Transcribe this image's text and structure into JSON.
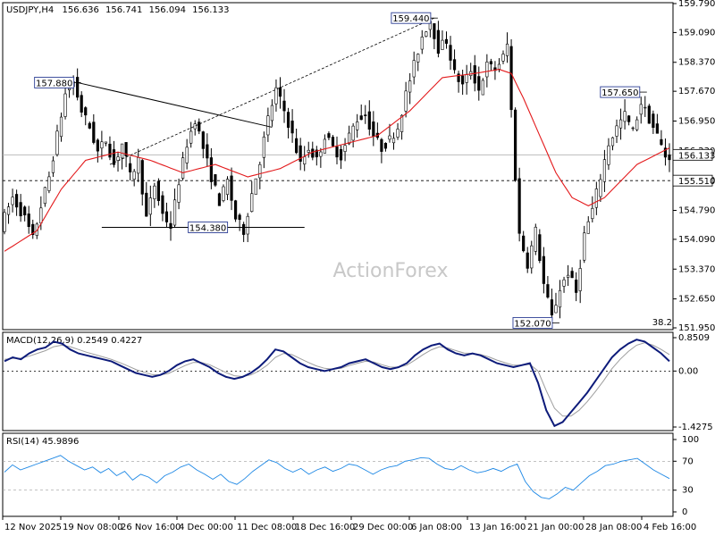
{
  "chart_data": [
    {
      "type": "candlestick",
      "title": "USDJPY,H4",
      "ohlc": {
        "open": "156.636",
        "high": "156.741",
        "low": "156.094",
        "close": "156.133"
      },
      "y_ticks": [
        "159.790",
        "159.090",
        "158.370",
        "157.670",
        "156.950",
        "156.230",
        "155.510",
        "154.790",
        "154.090",
        "153.370",
        "152.650",
        "151.950"
      ],
      "ylim": [
        151.95,
        159.79
      ],
      "current_price": {
        "label": "156.133",
        "value": 156.133
      },
      "level_line": {
        "label": "155.510",
        "value": 155.51
      },
      "annotations": [
        {
          "text": "159.440",
          "value": 159.44
        },
        {
          "text": "157.880",
          "value": 157.88
        },
        {
          "text": "157.650",
          "value": 157.65
        },
        {
          "text": "154.380",
          "value": 154.38
        },
        {
          "text": "152.070",
          "value": 152.07
        }
      ],
      "corner_label": "38.2",
      "watermark": "ActionForex",
      "x_ticks": [
        "12 Nov 2025",
        "19 Nov 08:00",
        "26 Nov 16:00",
        "4 Dec 00:00",
        "11 Dec 08:00",
        "18 Dec 16:00",
        "29 Dec 00:00",
        "6 Jan 08:00",
        "13 Jan 16:00",
        "21 Jan 00:00",
        "28 Jan 08:00",
        "4 Feb 16:00"
      ],
      "price_path": [
        [
          0,
          154.4
        ],
        [
          3,
          155.1
        ],
        [
          6,
          154.6
        ],
        [
          8,
          154.1
        ],
        [
          10,
          154.9
        ],
        [
          12,
          155.6
        ],
        [
          14,
          156.6
        ],
        [
          16,
          157.6
        ],
        [
          18,
          157.9
        ],
        [
          20,
          157.2
        ],
        [
          22,
          156.8
        ],
        [
          24,
          156.2
        ],
        [
          26,
          156.5
        ],
        [
          28,
          155.9
        ],
        [
          30,
          156.4
        ],
        [
          32,
          155.6
        ],
        [
          34,
          156.0
        ],
        [
          36,
          154.6
        ],
        [
          38,
          155.4
        ],
        [
          40,
          154.7
        ],
        [
          42,
          154.4
        ],
        [
          44,
          155.5
        ],
        [
          46,
          156.4
        ],
        [
          48,
          157.0
        ],
        [
          50,
          156.3
        ],
        [
          52,
          155.6
        ],
        [
          54,
          155.0
        ],
        [
          56,
          155.5
        ],
        [
          58,
          154.6
        ],
        [
          60,
          154.3
        ],
        [
          62,
          155.2
        ],
        [
          64,
          156.0
        ],
        [
          66,
          157.0
        ],
        [
          68,
          157.7
        ],
        [
          70,
          157.2
        ],
        [
          72,
          156.6
        ],
        [
          74,
          155.9
        ],
        [
          76,
          156.3
        ],
        [
          78,
          156.0
        ],
        [
          80,
          156.6
        ],
        [
          82,
          156.3
        ],
        [
          84,
          156.1
        ],
        [
          86,
          156.6
        ],
        [
          88,
          157.0
        ],
        [
          90,
          157.1
        ],
        [
          92,
          156.6
        ],
        [
          94,
          156.3
        ],
        [
          96,
          156.5
        ],
        [
          98,
          156.8
        ],
        [
          100,
          157.6
        ],
        [
          102,
          158.3
        ],
        [
          104,
          159.0
        ],
        [
          106,
          159.4
        ],
        [
          108,
          158.7
        ],
        [
          110,
          158.9
        ],
        [
          112,
          158.1
        ],
        [
          114,
          157.8
        ],
        [
          116,
          158.2
        ],
        [
          118,
          157.7
        ],
        [
          120,
          158.3
        ],
        [
          122,
          158.2
        ],
        [
          124,
          158.5
        ],
        [
          125,
          158.8
        ],
        [
          126,
          157.2
        ],
        [
          127,
          155.6
        ],
        [
          128,
          154.2
        ],
        [
          130,
          153.5
        ],
        [
          132,
          154.3
        ],
        [
          134,
          153.0
        ],
        [
          136,
          152.2
        ],
        [
          138,
          152.9
        ],
        [
          140,
          153.3
        ],
        [
          142,
          152.8
        ],
        [
          144,
          154.2
        ],
        [
          146,
          154.8
        ],
        [
          148,
          155.6
        ],
        [
          150,
          156.4
        ],
        [
          152,
          156.8
        ],
        [
          154,
          157.1
        ],
        [
          156,
          156.7
        ],
        [
          158,
          157.4
        ],
        [
          160,
          157.0
        ],
        [
          162,
          156.6
        ],
        [
          164,
          156.1
        ]
      ],
      "ma_path": [
        [
          0,
          153.8
        ],
        [
          8,
          154.3
        ],
        [
          14,
          155.3
        ],
        [
          20,
          156.0
        ],
        [
          28,
          156.2
        ],
        [
          36,
          156.0
        ],
        [
          44,
          155.7
        ],
        [
          52,
          155.9
        ],
        [
          60,
          155.6
        ],
        [
          68,
          155.8
        ],
        [
          76,
          156.2
        ],
        [
          84,
          156.4
        ],
        [
          92,
          156.6
        ],
        [
          100,
          157.2
        ],
        [
          108,
          158.0
        ],
        [
          116,
          158.1
        ],
        [
          122,
          158.2
        ],
        [
          125,
          158.1
        ],
        [
          128,
          157.5
        ],
        [
          132,
          156.6
        ],
        [
          136,
          155.7
        ],
        [
          140,
          155.1
        ],
        [
          144,
          154.9
        ],
        [
          148,
          155.1
        ],
        [
          152,
          155.5
        ],
        [
          156,
          155.9
        ],
        [
          160,
          156.1
        ],
        [
          164,
          156.3
        ]
      ],
      "x_count": 165,
      "annotation_bars": {
        "peak": 106,
        "high_nov": 18,
        "right": 158,
        "low_jan": 136,
        "low_dec": 44
      }
    },
    {
      "type": "line",
      "title": "MACD(12,26,9) 0.2549 0.4227",
      "y_ticks": [
        "0.8509",
        "0.00",
        "-1.4275"
      ],
      "ylim": [
        -1.4275,
        0.8509
      ],
      "series": [
        {
          "values": [
            0.25,
            0.35,
            0.3,
            0.45,
            0.55,
            0.6,
            0.75,
            0.7,
            0.55,
            0.45,
            0.4,
            0.35,
            0.3,
            0.25,
            0.15,
            0.05,
            -0.05,
            -0.1,
            -0.15,
            -0.1,
            0.0,
            0.15,
            0.25,
            0.3,
            0.2,
            0.1,
            -0.05,
            -0.15,
            -0.2,
            -0.15,
            -0.05,
            0.1,
            0.3,
            0.55,
            0.5,
            0.35,
            0.2,
            0.1,
            0.05,
            0.0,
            0.05,
            0.1,
            0.2,
            0.25,
            0.3,
            0.2,
            0.1,
            0.05,
            0.1,
            0.2,
            0.4,
            0.55,
            0.65,
            0.7,
            0.55,
            0.45,
            0.4,
            0.45,
            0.4,
            0.3,
            0.2,
            0.15,
            0.1,
            0.15,
            0.2,
            -0.3,
            -1.0,
            -1.4,
            -1.3,
            -1.05,
            -0.8,
            -0.55,
            -0.25,
            0.05,
            0.35,
            0.55,
            0.7,
            0.8,
            0.75,
            0.6,
            0.45,
            0.25
          ]
        },
        {
          "values": [
            0.3,
            0.32,
            0.33,
            0.38,
            0.45,
            0.52,
            0.62,
            0.66,
            0.62,
            0.55,
            0.48,
            0.42,
            0.36,
            0.3,
            0.22,
            0.13,
            0.04,
            -0.03,
            -0.09,
            -0.1,
            -0.06,
            0.04,
            0.14,
            0.22,
            0.22,
            0.16,
            0.06,
            -0.04,
            -0.12,
            -0.14,
            -0.1,
            0.0,
            0.15,
            0.35,
            0.45,
            0.42,
            0.32,
            0.22,
            0.13,
            0.07,
            0.05,
            0.07,
            0.14,
            0.2,
            0.25,
            0.23,
            0.16,
            0.1,
            0.1,
            0.15,
            0.28,
            0.42,
            0.54,
            0.62,
            0.59,
            0.52,
            0.46,
            0.45,
            0.42,
            0.36,
            0.28,
            0.21,
            0.15,
            0.15,
            0.17,
            0.0,
            -0.5,
            -0.95,
            -1.15,
            -1.15,
            -1.0,
            -0.78,
            -0.52,
            -0.24,
            0.06,
            0.3,
            0.5,
            0.66,
            0.72,
            0.66,
            0.55,
            0.42
          ]
        }
      ]
    },
    {
      "type": "line",
      "title": "RSI(14) 45.9896",
      "y_ticks": [
        "100",
        "70",
        "30",
        "0"
      ],
      "ylim": [
        0,
        100
      ],
      "series": [
        {
          "values": [
            55,
            65,
            58,
            62,
            66,
            70,
            74,
            78,
            70,
            64,
            58,
            62,
            54,
            60,
            50,
            56,
            44,
            52,
            48,
            40,
            50,
            55,
            62,
            66,
            58,
            52,
            45,
            52,
            42,
            38,
            46,
            56,
            64,
            72,
            68,
            60,
            55,
            60,
            52,
            58,
            62,
            56,
            60,
            66,
            64,
            58,
            52,
            58,
            62,
            64,
            70,
            72,
            75,
            74,
            66,
            60,
            58,
            64,
            58,
            54,
            56,
            60,
            56,
            62,
            66,
            42,
            28,
            20,
            18,
            25,
            34,
            30,
            40,
            50,
            56,
            64,
            66,
            70,
            72,
            74,
            66,
            58,
            52,
            46
          ]
        }
      ]
    }
  ]
}
